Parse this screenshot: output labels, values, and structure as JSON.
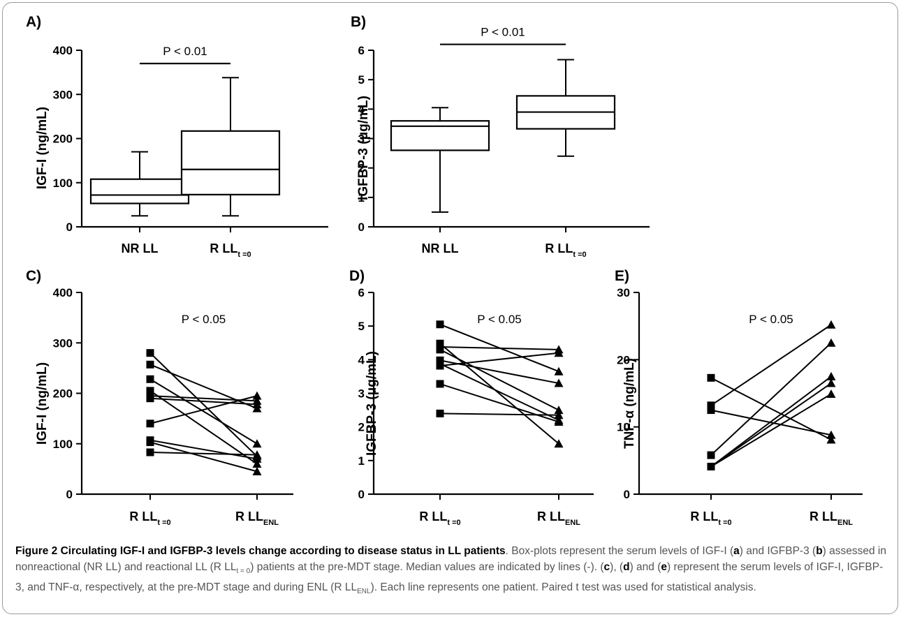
{
  "chart_data": [
    {
      "panel_label": "A)",
      "type": "box",
      "ylabel": "IGF-I (ng/mL)",
      "yticks": [
        0,
        100,
        200,
        300,
        400
      ],
      "ylim": [
        0,
        400
      ],
      "categories": [
        {
          "base": "NR LL",
          "sub": ""
        },
        {
          "base": "R LL",
          "sub": "t =0"
        }
      ],
      "boxes": [
        {
          "min": 25,
          "q1": 53,
          "median": 72,
          "q3": 108,
          "max": 170
        },
        {
          "min": 25,
          "q1": 73,
          "median": 130,
          "q3": 217,
          "max": 338
        }
      ],
      "annotation": {
        "text": "P < 0.01",
        "bar_value": 370
      }
    },
    {
      "panel_label": "B)",
      "type": "box",
      "ylabel": "IGFBP-3 (μg/mL)",
      "yticks": [
        0,
        1,
        2,
        3,
        4,
        5,
        6
      ],
      "ylim": [
        0,
        6
      ],
      "categories": [
        {
          "base": "NR LL",
          "sub": ""
        },
        {
          "base": "R LL",
          "sub": "t =0"
        }
      ],
      "boxes": [
        {
          "min": 0.5,
          "q1": 2.6,
          "median": 3.42,
          "q3": 3.6,
          "max": 4.05
        },
        {
          "min": 2.4,
          "q1": 3.33,
          "median": 3.9,
          "q3": 4.45,
          "max": 5.68
        }
      ],
      "annotation": {
        "text": "P < 0.01",
        "bar_value": 6.2
      }
    },
    {
      "panel_label": "C)",
      "type": "paired-line",
      "ylabel": "IGF-I (ng/mL)",
      "yticks": [
        0,
        100,
        200,
        300,
        400
      ],
      "ylim": [
        0,
        400
      ],
      "categories": [
        {
          "base": "R LL",
          "sub": "t =0"
        },
        {
          "base": "R LL",
          "sub": "ENL"
        }
      ],
      "pairs": [
        [
          280,
          75
        ],
        [
          257,
          170
        ],
        [
          228,
          100
        ],
        [
          205,
          60
        ],
        [
          195,
          185
        ],
        [
          190,
          178
        ],
        [
          140,
          195
        ],
        [
          107,
          70
        ],
        [
          103,
          45
        ],
        [
          83,
          78
        ]
      ],
      "annotation": {
        "text": "P < 0.05"
      }
    },
    {
      "panel_label": "D)",
      "type": "paired-line",
      "ylabel": "IGFBP-3 (μg/mL)",
      "yticks": [
        0,
        1,
        2,
        3,
        4,
        5,
        6
      ],
      "ylim": [
        0,
        6
      ],
      "categories": [
        {
          "base": "R LL",
          "sub": "t =0"
        },
        {
          "base": "R LL",
          "sub": "ENL"
        }
      ],
      "pairs": [
        [
          5.05,
          3.65
        ],
        [
          4.48,
          1.5
        ],
        [
          4.38,
          4.3
        ],
        [
          4.3,
          2.5
        ],
        [
          3.98,
          3.3
        ],
        [
          3.88,
          2.2
        ],
        [
          3.82,
          4.2
        ],
        [
          3.28,
          2.15
        ],
        [
          2.4,
          2.35
        ]
      ],
      "annotation": {
        "text": "P < 0.05"
      }
    },
    {
      "panel_label": "E)",
      "type": "paired-line",
      "ylabel": "TNF-α (ng/mL)",
      "yticks": [
        0,
        10,
        20,
        30
      ],
      "ylim": [
        0,
        30
      ],
      "categories": [
        {
          "base": "R LL",
          "sub": "t =0"
        },
        {
          "base": "R LL",
          "sub": "ENL"
        }
      ],
      "pairs": [
        [
          17.3,
          8.1
        ],
        [
          13.2,
          25.2
        ],
        [
          12.5,
          8.8
        ],
        [
          5.8,
          22.5
        ],
        [
          4.1,
          17.5
        ],
        [
          4.1,
          16.5
        ],
        [
          4.1,
          14.9
        ]
      ],
      "annotation": {
        "text": "P < 0.05"
      }
    }
  ],
  "caption": {
    "title": "Figure 2 Circulating IGF-I and IGFBP-3 levels change according to disease status in LL patients",
    "p1": ". Box-plots represent the serum levels of IGF-I (",
    "a": "a",
    "p2": ") and IGFBP-3 (",
    "b": "b",
    "p3": ") assessed in nonreactional (NR LL) and reactional LL (R LL",
    "sub_t0": "t = 0",
    "p4": ") patients at the pre-MDT stage. Median values are indicated by lines (-). (",
    "c": "c",
    "p5": "), (",
    "d": "d",
    "p6": ") and (",
    "e": "e",
    "p7": ") represent the serum levels of IGF-I, IGFBP-3, and TNF-α, respectively, at the pre-MDT stage and during ENL (R LL",
    "sub_enl": "ENL",
    "p8": "). Each line represents one patient. Paired t test was used for statistical analysis."
  }
}
